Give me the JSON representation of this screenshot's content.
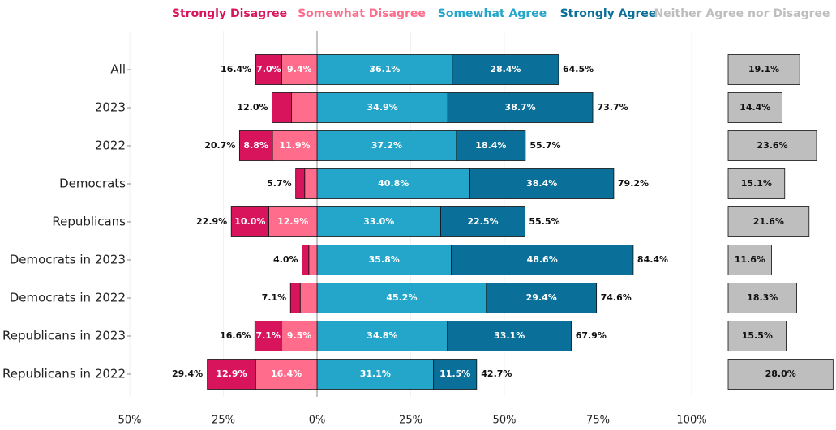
{
  "chart_data": {
    "type": "diverging-bar",
    "categories": [
      "All",
      "2023",
      "2022",
      "Democrats",
      "Republicans",
      "Democrats in 2023",
      "Democrats in 2022",
      "Republicans in 2023",
      "Republicans in 2022"
    ],
    "series": [
      {
        "name": "Strongly Disagree",
        "color": "#d7145c",
        "values": [
          -7.0,
          -5.2,
          -8.8,
          -2.4,
          -10.0,
          -1.8,
          -2.6,
          -7.1,
          -12.9
        ],
        "value_labels": [
          "7.0%",
          null,
          "8.8%",
          null,
          "10.0%",
          null,
          null,
          "7.1%",
          "12.9%"
        ]
      },
      {
        "name": "Somewhat Disagree",
        "color": "#ff6c8c",
        "values": [
          -9.4,
          -6.8,
          -11.9,
          -3.3,
          -12.9,
          -2.2,
          -4.5,
          -9.5,
          -16.4
        ],
        "value_labels": [
          "9.4%",
          null,
          "11.9%",
          null,
          "12.9%",
          null,
          null,
          "9.5%",
          "16.4%"
        ]
      },
      {
        "name": "Somewhat Agree",
        "color": "#24a5ca",
        "values": [
          36.1,
          34.9,
          37.2,
          40.8,
          33.0,
          35.8,
          45.2,
          34.8,
          31.1
        ],
        "value_labels": [
          "36.1%",
          "34.9%",
          "37.2%",
          "40.8%",
          "33.0%",
          "35.8%",
          "45.2%",
          "34.8%",
          "31.1%"
        ]
      },
      {
        "name": "Strongly Agree",
        "color": "#0a6f99",
        "values": [
          28.4,
          38.7,
          18.4,
          38.4,
          22.5,
          48.6,
          29.4,
          33.1,
          11.5
        ],
        "value_labels": [
          "28.4%",
          "38.7%",
          "18.4%",
          "38.4%",
          "22.5%",
          "48.6%",
          "29.4%",
          "33.1%",
          "11.5%"
        ]
      }
    ],
    "neither": {
      "name": "Neither Agree nor Disagree",
      "color": "#bebebe",
      "values": [
        19.1,
        14.4,
        23.6,
        15.1,
        21.6,
        11.6,
        18.3,
        15.5,
        28.0
      ],
      "value_labels": [
        "19.1%",
        "14.4%",
        "23.6%",
        "15.1%",
        "21.6%",
        "11.6%",
        "18.3%",
        "15.5%",
        "28.0%"
      ]
    },
    "disagree_totals": {
      "values": [
        -16.4,
        -12.0,
        -20.7,
        -5.7,
        -22.9,
        -4.0,
        -7.1,
        -16.6,
        -29.4
      ],
      "value_labels": [
        "16.4%",
        "12.0%",
        "20.7%",
        "5.7%",
        "22.9%",
        "4.0%",
        "7.1%",
        "16.6%",
        "29.4%"
      ]
    },
    "agree_totals": {
      "values": [
        64.5,
        73.7,
        55.7,
        79.2,
        55.5,
        84.4,
        74.6,
        67.9,
        42.7
      ],
      "value_labels": [
        "64.5%",
        "73.7%",
        "55.7%",
        "79.2%",
        "55.5%",
        "84.4%",
        "74.6%",
        "67.9%",
        "42.7%"
      ]
    },
    "xlim": [
      -50,
      100
    ],
    "xticks": [
      {
        "value": -50,
        "label": "50%"
      },
      {
        "value": -25,
        "label": "25%"
      },
      {
        "value": 0,
        "label": "0%"
      },
      {
        "value": 25,
        "label": "25%"
      },
      {
        "value": 50,
        "label": "50%"
      },
      {
        "value": 75,
        "label": "75%"
      },
      {
        "value": 100,
        "label": "100%"
      }
    ],
    "grid": true
  }
}
